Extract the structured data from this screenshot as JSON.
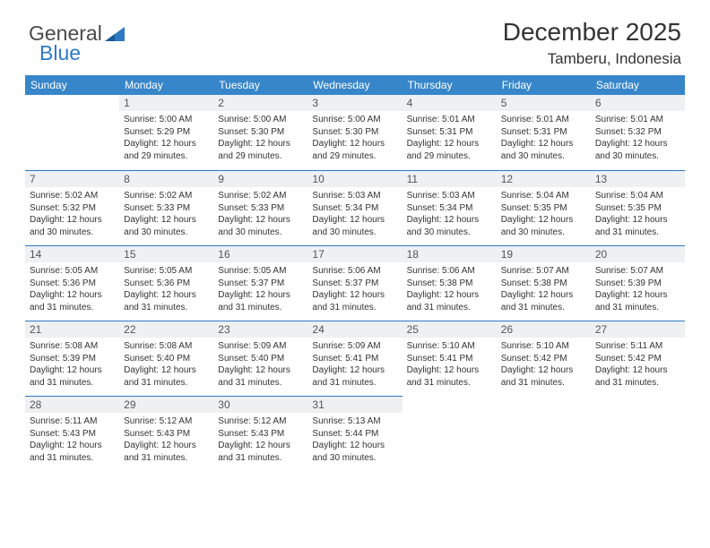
{
  "logo": {
    "text1": "General",
    "text2": "Blue"
  },
  "header": {
    "month": "December 2025",
    "location": "Tamberu, Indonesia"
  },
  "colors": {
    "header_bg": "#3886ca",
    "header_fg": "#ffffff",
    "daynum_bg": "#eef0f2",
    "border": "#2e79c3"
  },
  "days": [
    "Sunday",
    "Monday",
    "Tuesday",
    "Wednesday",
    "Thursday",
    "Friday",
    "Saturday"
  ],
  "weeks": [
    [
      null,
      {
        "n": "1",
        "sr": "Sunrise: 5:00 AM",
        "ss": "Sunset: 5:29 PM",
        "d1": "Daylight: 12 hours",
        "d2": "and 29 minutes."
      },
      {
        "n": "2",
        "sr": "Sunrise: 5:00 AM",
        "ss": "Sunset: 5:30 PM",
        "d1": "Daylight: 12 hours",
        "d2": "and 29 minutes."
      },
      {
        "n": "3",
        "sr": "Sunrise: 5:00 AM",
        "ss": "Sunset: 5:30 PM",
        "d1": "Daylight: 12 hours",
        "d2": "and 29 minutes."
      },
      {
        "n": "4",
        "sr": "Sunrise: 5:01 AM",
        "ss": "Sunset: 5:31 PM",
        "d1": "Daylight: 12 hours",
        "d2": "and 29 minutes."
      },
      {
        "n": "5",
        "sr": "Sunrise: 5:01 AM",
        "ss": "Sunset: 5:31 PM",
        "d1": "Daylight: 12 hours",
        "d2": "and 30 minutes."
      },
      {
        "n": "6",
        "sr": "Sunrise: 5:01 AM",
        "ss": "Sunset: 5:32 PM",
        "d1": "Daylight: 12 hours",
        "d2": "and 30 minutes."
      }
    ],
    [
      {
        "n": "7",
        "sr": "Sunrise: 5:02 AM",
        "ss": "Sunset: 5:32 PM",
        "d1": "Daylight: 12 hours",
        "d2": "and 30 minutes."
      },
      {
        "n": "8",
        "sr": "Sunrise: 5:02 AM",
        "ss": "Sunset: 5:33 PM",
        "d1": "Daylight: 12 hours",
        "d2": "and 30 minutes."
      },
      {
        "n": "9",
        "sr": "Sunrise: 5:02 AM",
        "ss": "Sunset: 5:33 PM",
        "d1": "Daylight: 12 hours",
        "d2": "and 30 minutes."
      },
      {
        "n": "10",
        "sr": "Sunrise: 5:03 AM",
        "ss": "Sunset: 5:34 PM",
        "d1": "Daylight: 12 hours",
        "d2": "and 30 minutes."
      },
      {
        "n": "11",
        "sr": "Sunrise: 5:03 AM",
        "ss": "Sunset: 5:34 PM",
        "d1": "Daylight: 12 hours",
        "d2": "and 30 minutes."
      },
      {
        "n": "12",
        "sr": "Sunrise: 5:04 AM",
        "ss": "Sunset: 5:35 PM",
        "d1": "Daylight: 12 hours",
        "d2": "and 30 minutes."
      },
      {
        "n": "13",
        "sr": "Sunrise: 5:04 AM",
        "ss": "Sunset: 5:35 PM",
        "d1": "Daylight: 12 hours",
        "d2": "and 31 minutes."
      }
    ],
    [
      {
        "n": "14",
        "sr": "Sunrise: 5:05 AM",
        "ss": "Sunset: 5:36 PM",
        "d1": "Daylight: 12 hours",
        "d2": "and 31 minutes."
      },
      {
        "n": "15",
        "sr": "Sunrise: 5:05 AM",
        "ss": "Sunset: 5:36 PM",
        "d1": "Daylight: 12 hours",
        "d2": "and 31 minutes."
      },
      {
        "n": "16",
        "sr": "Sunrise: 5:05 AM",
        "ss": "Sunset: 5:37 PM",
        "d1": "Daylight: 12 hours",
        "d2": "and 31 minutes."
      },
      {
        "n": "17",
        "sr": "Sunrise: 5:06 AM",
        "ss": "Sunset: 5:37 PM",
        "d1": "Daylight: 12 hours",
        "d2": "and 31 minutes."
      },
      {
        "n": "18",
        "sr": "Sunrise: 5:06 AM",
        "ss": "Sunset: 5:38 PM",
        "d1": "Daylight: 12 hours",
        "d2": "and 31 minutes."
      },
      {
        "n": "19",
        "sr": "Sunrise: 5:07 AM",
        "ss": "Sunset: 5:38 PM",
        "d1": "Daylight: 12 hours",
        "d2": "and 31 minutes."
      },
      {
        "n": "20",
        "sr": "Sunrise: 5:07 AM",
        "ss": "Sunset: 5:39 PM",
        "d1": "Daylight: 12 hours",
        "d2": "and 31 minutes."
      }
    ],
    [
      {
        "n": "21",
        "sr": "Sunrise: 5:08 AM",
        "ss": "Sunset: 5:39 PM",
        "d1": "Daylight: 12 hours",
        "d2": "and 31 minutes."
      },
      {
        "n": "22",
        "sr": "Sunrise: 5:08 AM",
        "ss": "Sunset: 5:40 PM",
        "d1": "Daylight: 12 hours",
        "d2": "and 31 minutes."
      },
      {
        "n": "23",
        "sr": "Sunrise: 5:09 AM",
        "ss": "Sunset: 5:40 PM",
        "d1": "Daylight: 12 hours",
        "d2": "and 31 minutes."
      },
      {
        "n": "24",
        "sr": "Sunrise: 5:09 AM",
        "ss": "Sunset: 5:41 PM",
        "d1": "Daylight: 12 hours",
        "d2": "and 31 minutes."
      },
      {
        "n": "25",
        "sr": "Sunrise: 5:10 AM",
        "ss": "Sunset: 5:41 PM",
        "d1": "Daylight: 12 hours",
        "d2": "and 31 minutes."
      },
      {
        "n": "26",
        "sr": "Sunrise: 5:10 AM",
        "ss": "Sunset: 5:42 PM",
        "d1": "Daylight: 12 hours",
        "d2": "and 31 minutes."
      },
      {
        "n": "27",
        "sr": "Sunrise: 5:11 AM",
        "ss": "Sunset: 5:42 PM",
        "d1": "Daylight: 12 hours",
        "d2": "and 31 minutes."
      }
    ],
    [
      {
        "n": "28",
        "sr": "Sunrise: 5:11 AM",
        "ss": "Sunset: 5:43 PM",
        "d1": "Daylight: 12 hours",
        "d2": "and 31 minutes."
      },
      {
        "n": "29",
        "sr": "Sunrise: 5:12 AM",
        "ss": "Sunset: 5:43 PM",
        "d1": "Daylight: 12 hours",
        "d2": "and 31 minutes."
      },
      {
        "n": "30",
        "sr": "Sunrise: 5:12 AM",
        "ss": "Sunset: 5:43 PM",
        "d1": "Daylight: 12 hours",
        "d2": "and 31 minutes."
      },
      {
        "n": "31",
        "sr": "Sunrise: 5:13 AM",
        "ss": "Sunset: 5:44 PM",
        "d1": "Daylight: 12 hours",
        "d2": "and 30 minutes."
      },
      null,
      null,
      null
    ]
  ]
}
